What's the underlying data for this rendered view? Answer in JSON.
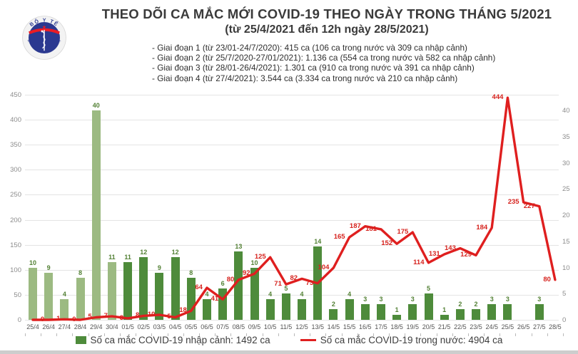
{
  "logo": {
    "top_text": "BỘ Y TẾ",
    "bottom_text": "MINISTRY OF HEALTH"
  },
  "header": {
    "title": "THEO DÕI CA MẮC MỚI COVID-19 THEO NGÀY TRONG THÁNG 5/2021",
    "subtitle": "(từ 25/4/2021 đến 12h ngày 28/5/2021)",
    "bullets": [
      "- Giai đoạn 1 (từ 23/01-24/7/2020): 415 ca (106 ca trong nước và 309 ca nhập cảnh)",
      "- Giai đoạn 2 (từ 25/7/2020-27/01/2021): 1.136 ca (554 ca trong nước và 582 ca nhập cảnh)",
      "- Giai đoạn 3 (từ 28/01-26/4/2021): 1.301 ca (910 ca trong nước và 391 ca nhập cảnh)",
      "- Giai đoạn 4 (từ 27/4/2021): 3.544 ca (3.334 ca trong nước và 210 ca nhập cảnh)"
    ]
  },
  "legend": {
    "items": [
      {
        "label": "Số ca mắc COVID-19 nhập cảnh: 1492 ca",
        "swatch": "bar"
      },
      {
        "label": "Số ca mắc COVID-19 trong nước: 4904 ca",
        "swatch": "line"
      }
    ]
  },
  "chart_data": {
    "type": "bar+line",
    "categories": [
      "25/4",
      "26/4",
      "27/4",
      "28/4",
      "29/4",
      "30/4",
      "01/5",
      "02/5",
      "03/5",
      "04/5",
      "05/5",
      "06/5",
      "07/5",
      "08/5",
      "09/5",
      "10/5",
      "11/5",
      "12/5",
      "13/5",
      "14/5",
      "15/5",
      "16/5",
      "17/5",
      "18/5",
      "19/5",
      "20/5",
      "21/5",
      "22/5",
      "23/5",
      "24/5",
      "25/5",
      "26/5",
      "27/5",
      "28/5"
    ],
    "series": [
      {
        "name": "Số ca mắc COVID-19 nhập cảnh",
        "type": "bar",
        "axis": "right",
        "values": [
          10,
          9,
          4,
          8,
          40,
          11,
          11,
          12,
          9,
          12,
          8,
          4,
          6,
          13,
          10,
          4,
          5,
          4,
          14,
          2,
          4,
          3,
          3,
          1,
          3,
          5,
          1,
          2,
          2,
          3,
          3,
          0,
          3,
          0
        ]
      },
      {
        "name": "Số ca mắc COVID-19 trong nước",
        "type": "line",
        "axis": "left",
        "values": [
          0,
          0,
          1,
          0,
          5,
          7,
          3,
          8,
          10,
          5,
          18,
          64,
          41,
          80,
          92,
          125,
          71,
          82,
          73,
          104,
          165,
          187,
          181,
          152,
          175,
          114,
          131,
          143,
          129,
          184,
          444,
          235,
          227,
          80
        ],
        "labels": [
          "",
          "0",
          "1",
          "0",
          "5",
          "7",
          "3",
          "8",
          "10",
          "5",
          "18",
          "64",
          "41",
          "80",
          "92",
          "125",
          "71",
          "82",
          "73",
          "104",
          "165",
          "187",
          "181",
          "152",
          "175",
          "114",
          "131",
          "143",
          "129",
          "184",
          "444",
          "235",
          "227",
          "80"
        ]
      }
    ],
    "left_axis": {
      "min": 0,
      "max": 450,
      "step": 50,
      "tick_labels": [
        0,
        50,
        100,
        150,
        200,
        250,
        300,
        350,
        400,
        450
      ]
    },
    "right_axis": {
      "min": 0,
      "max": 45,
      "step": 5,
      "tick_labels": [
        0,
        5,
        10,
        15,
        20,
        25,
        30,
        35,
        40
      ]
    },
    "grid": "horizontal",
    "legend_position": "bottom",
    "colors": {
      "bar_april": "#9cba82",
      "bar_may": "#4e8b3b",
      "bar_label": "#538135",
      "line": "#df1f1f",
      "line_label": "#d6231e"
    },
    "april_bar_count": 6
  }
}
